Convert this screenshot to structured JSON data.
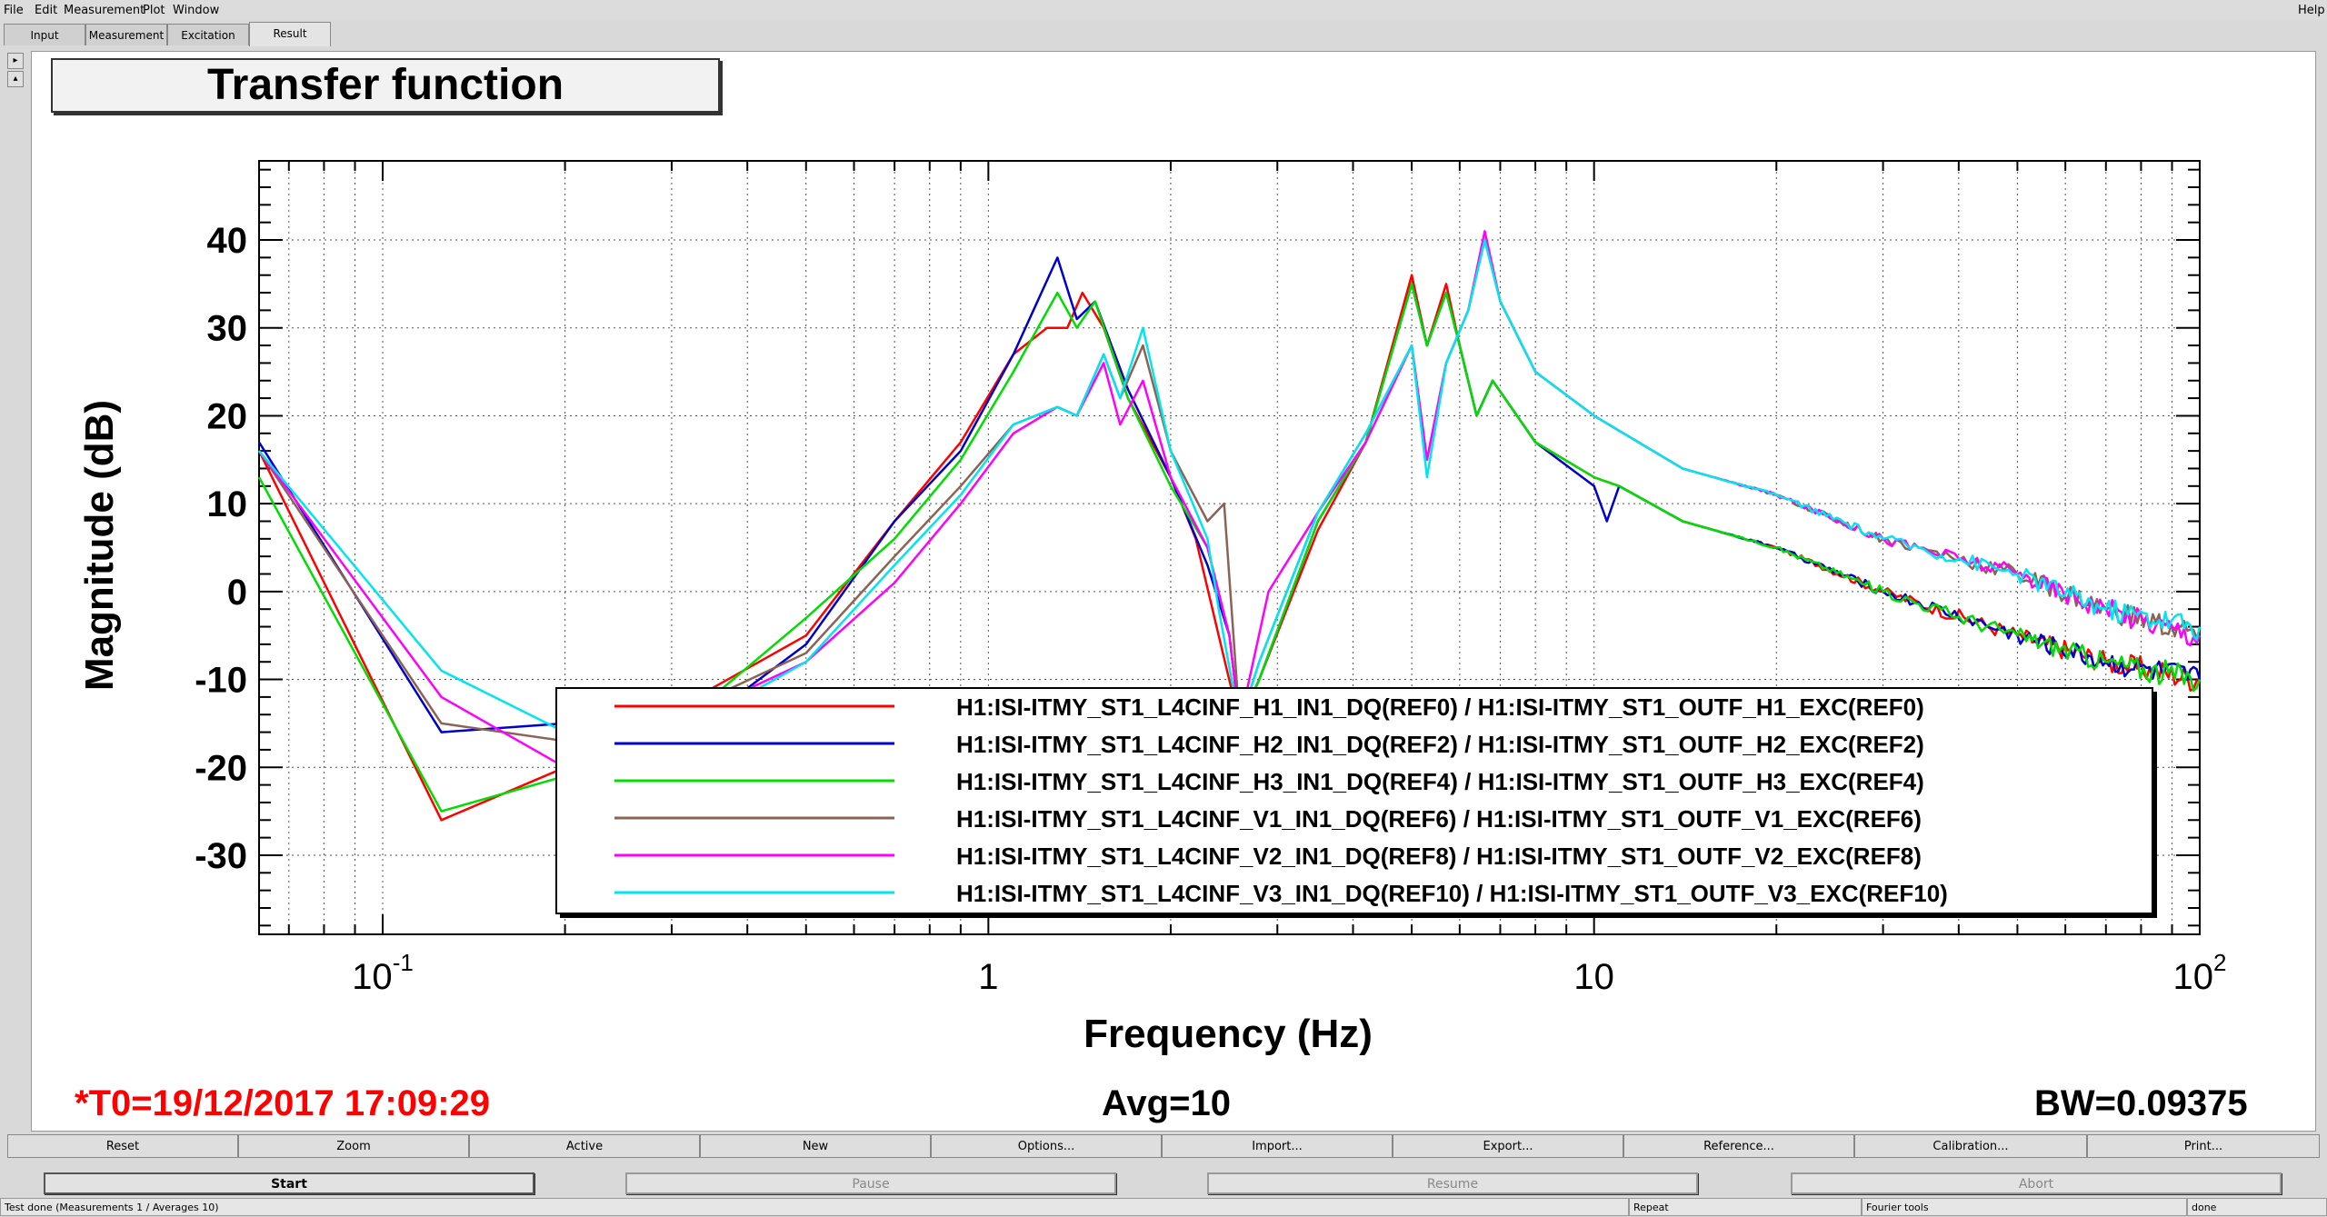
{
  "menu": [
    "File",
    "Edit",
    "Measurement",
    "Plot",
    "Window"
  ],
  "help": "Help",
  "tabs": [
    "Input",
    "Measurement",
    "Excitation",
    "Result"
  ],
  "active_tab": "Result",
  "plot_title": "Transfer function",
  "footer": {
    "t0": "*T0=19/12/2017 17:09:29",
    "avg": "Avg=10",
    "bw": "BW=0.09375"
  },
  "toolbar": [
    "Reset",
    "Zoom",
    "Active",
    "New",
    "Options...",
    "Import...",
    "Export...",
    "Reference...",
    "Calibration...",
    "Print..."
  ],
  "controls": {
    "start": "Start",
    "pause": "Pause",
    "resume": "Resume",
    "abort": "Abort"
  },
  "status": {
    "message": "Test done (Measurements 1 / Averages 10)",
    "repeat": "Repeat",
    "tools": "Fourier tools",
    "state": "done"
  },
  "colors": {
    "accent_red": "#ff0000",
    "REF0": "#ff0000",
    "REF2": "#0000cc",
    "REF4": "#00dd00",
    "REF6": "#8b6355",
    "REF8": "#ff00ff",
    "REF10": "#00e5ee"
  },
  "chart_data": {
    "type": "line",
    "title": "Transfer function",
    "xlabel": "Frequency (Hz)",
    "ylabel": "Magnitude (dB)",
    "xscale": "log",
    "xlim": [
      0.0625,
      100
    ],
    "ylim": [
      -39,
      49
    ],
    "grid": true,
    "x_tick_labels": [
      {
        "base": "10",
        "exp": "-1"
      },
      {
        "base": "1",
        "exp": ""
      },
      {
        "base": "10",
        "exp": ""
      },
      {
        "base": "10",
        "exp": "2"
      }
    ],
    "y_ticks": [
      40,
      30,
      20,
      10,
      0,
      -10,
      -20,
      -30
    ],
    "legend_position": "bottom-right",
    "series": [
      {
        "name": "H1:ISI-ITMY_ST1_L4CINF_H1_IN1_DQ(REF0) / H1:ISI-ITMY_ST1_OUTF_H1_EXC(REF0)",
        "color": "#ff0000",
        "points": [
          [
            0.0625,
            16
          ],
          [
            0.125,
            -26
          ],
          [
            0.2,
            -20
          ],
          [
            0.35,
            -11
          ],
          [
            0.5,
            -5
          ],
          [
            0.7,
            8
          ],
          [
            0.9,
            17
          ],
          [
            1.1,
            27
          ],
          [
            1.25,
            30
          ],
          [
            1.35,
            30
          ],
          [
            1.43,
            34
          ],
          [
            1.55,
            30
          ],
          [
            1.7,
            22
          ],
          [
            2.0,
            13
          ],
          [
            2.2,
            6
          ],
          [
            2.4,
            -5
          ],
          [
            2.6,
            -15
          ],
          [
            2.8,
            -10
          ],
          [
            3.5,
            7
          ],
          [
            4.2,
            17
          ],
          [
            5.0,
            36
          ],
          [
            5.3,
            28
          ],
          [
            5.7,
            35
          ],
          [
            6.0,
            28
          ],
          [
            6.4,
            20
          ],
          [
            6.8,
            24
          ],
          [
            8.0,
            17
          ],
          [
            10,
            13
          ],
          [
            11,
            12
          ],
          [
            14,
            8
          ],
          [
            20,
            5
          ],
          [
            30,
            0
          ],
          [
            50,
            -5
          ],
          [
            70,
            -8
          ],
          [
            100,
            -10
          ]
        ]
      },
      {
        "name": "H1:ISI-ITMY_ST1_L4CINF_H2_IN1_DQ(REF2) / H1:ISI-ITMY_ST1_OUTF_H2_EXC(REF2)",
        "color": "#0000cc",
        "points": [
          [
            0.0625,
            17
          ],
          [
            0.125,
            -16
          ],
          [
            0.2,
            -15
          ],
          [
            0.35,
            -14
          ],
          [
            0.5,
            -6
          ],
          [
            0.7,
            8
          ],
          [
            0.9,
            16
          ],
          [
            1.1,
            27
          ],
          [
            1.3,
            38
          ],
          [
            1.4,
            31
          ],
          [
            1.5,
            33
          ],
          [
            1.7,
            23
          ],
          [
            2.0,
            13
          ],
          [
            2.3,
            3
          ],
          [
            2.5,
            -5
          ],
          [
            2.6,
            -15
          ],
          [
            2.8,
            -10
          ],
          [
            3.5,
            8
          ],
          [
            4.2,
            17
          ],
          [
            5.0,
            35
          ],
          [
            5.3,
            28
          ],
          [
            5.7,
            34
          ],
          [
            6.0,
            28
          ],
          [
            6.4,
            20
          ],
          [
            6.8,
            24
          ],
          [
            8.0,
            17
          ],
          [
            10,
            12
          ],
          [
            10.5,
            8
          ],
          [
            11,
            12
          ],
          [
            14,
            8
          ],
          [
            20,
            5
          ],
          [
            30,
            0
          ],
          [
            50,
            -5
          ],
          [
            70,
            -8
          ],
          [
            100,
            -10
          ]
        ]
      },
      {
        "name": "H1:ISI-ITMY_ST1_L4CINF_H3_IN1_DQ(REF4) / H1:ISI-ITMY_ST1_OUTF_H3_EXC(REF4)",
        "color": "#00dd00",
        "points": [
          [
            0.0625,
            13
          ],
          [
            0.125,
            -25
          ],
          [
            0.2,
            -21
          ],
          [
            0.35,
            -12
          ],
          [
            0.5,
            -3
          ],
          [
            0.7,
            6
          ],
          [
            0.9,
            15
          ],
          [
            1.1,
            25
          ],
          [
            1.3,
            34
          ],
          [
            1.4,
            30
          ],
          [
            1.5,
            33
          ],
          [
            1.7,
            22
          ],
          [
            2.0,
            12
          ],
          [
            2.3,
            5
          ],
          [
            2.5,
            -5
          ],
          [
            2.6,
            -15
          ],
          [
            2.8,
            -10
          ],
          [
            3.5,
            8
          ],
          [
            4.2,
            17
          ],
          [
            5.0,
            35
          ],
          [
            5.3,
            28
          ],
          [
            5.7,
            34
          ],
          [
            6.0,
            28
          ],
          [
            6.4,
            20
          ],
          [
            6.8,
            24
          ],
          [
            8.0,
            17
          ],
          [
            10,
            13
          ],
          [
            11,
            12
          ],
          [
            14,
            8
          ],
          [
            20,
            5
          ],
          [
            30,
            0
          ],
          [
            50,
            -5
          ],
          [
            70,
            -8
          ],
          [
            100,
            -10
          ]
        ]
      },
      {
        "name": "H1:ISI-ITMY_ST1_L4CINF_V1_IN1_DQ(REF6) / H1:ISI-ITMY_ST1_OUTF_V1_EXC(REF6)",
        "color": "#8b6355",
        "points": [
          [
            0.0625,
            16
          ],
          [
            0.125,
            -15
          ],
          [
            0.2,
            -17
          ],
          [
            0.35,
            -12
          ],
          [
            0.5,
            -7
          ],
          [
            0.7,
            4
          ],
          [
            0.9,
            12
          ],
          [
            1.1,
            19
          ],
          [
            1.3,
            21
          ],
          [
            1.4,
            20
          ],
          [
            1.55,
            27
          ],
          [
            1.65,
            22
          ],
          [
            1.8,
            28
          ],
          [
            2.0,
            16
          ],
          [
            2.3,
            8
          ],
          [
            2.45,
            10
          ],
          [
            2.6,
            -15
          ],
          [
            2.8,
            -8
          ],
          [
            3.5,
            9
          ],
          [
            4.2,
            18
          ],
          [
            5.0,
            28
          ],
          [
            5.3,
            15
          ],
          [
            5.7,
            26
          ],
          [
            6.2,
            32
          ],
          [
            6.6,
            40
          ],
          [
            7.0,
            33
          ],
          [
            8.0,
            25
          ],
          [
            10,
            20
          ],
          [
            14,
            14
          ],
          [
            20,
            11
          ],
          [
            30,
            6
          ],
          [
            50,
            2
          ],
          [
            70,
            -2
          ],
          [
            100,
            -5
          ]
        ]
      },
      {
        "name": "H1:ISI-ITMY_ST1_L4CINF_V2_IN1_DQ(REF8) / H1:ISI-ITMY_ST1_OUTF_V2_EXC(REF8)",
        "color": "#ff00ff",
        "points": [
          [
            0.0625,
            16
          ],
          [
            0.125,
            -12
          ],
          [
            0.2,
            -20
          ],
          [
            0.35,
            -13
          ],
          [
            0.5,
            -8
          ],
          [
            0.7,
            1
          ],
          [
            0.9,
            10
          ],
          [
            1.1,
            18
          ],
          [
            1.3,
            21
          ],
          [
            1.4,
            20
          ],
          [
            1.55,
            26
          ],
          [
            1.65,
            19
          ],
          [
            1.8,
            24
          ],
          [
            2.0,
            13
          ],
          [
            2.3,
            5
          ],
          [
            2.5,
            -5
          ],
          [
            2.6,
            -15
          ],
          [
            2.9,
            0
          ],
          [
            3.5,
            9
          ],
          [
            4.2,
            17
          ],
          [
            5.0,
            28
          ],
          [
            5.3,
            15
          ],
          [
            5.7,
            26
          ],
          [
            6.2,
            32
          ],
          [
            6.6,
            41
          ],
          [
            7.0,
            33
          ],
          [
            8.0,
            25
          ],
          [
            10,
            20
          ],
          [
            14,
            14
          ],
          [
            20,
            11
          ],
          [
            30,
            6
          ],
          [
            50,
            2
          ],
          [
            70,
            -2
          ],
          [
            100,
            -5
          ]
        ]
      },
      {
        "name": "H1:ISI-ITMY_ST1_L4CINF_V3_IN1_DQ(REF10) / H1:ISI-ITMY_ST1_OUTF_V3_EXC(REF10)",
        "color": "#00e5ee",
        "points": [
          [
            0.0625,
            16
          ],
          [
            0.125,
            -9
          ],
          [
            0.2,
            -16
          ],
          [
            0.35,
            -14
          ],
          [
            0.5,
            -8
          ],
          [
            0.7,
            3
          ],
          [
            0.9,
            11
          ],
          [
            1.1,
            19
          ],
          [
            1.3,
            21
          ],
          [
            1.4,
            20
          ],
          [
            1.55,
            27
          ],
          [
            1.65,
            22
          ],
          [
            1.8,
            30
          ],
          [
            2.0,
            16
          ],
          [
            2.3,
            6
          ],
          [
            2.4,
            -2
          ],
          [
            2.6,
            -15
          ],
          [
            2.8,
            -8
          ],
          [
            3.5,
            9
          ],
          [
            4.2,
            18
          ],
          [
            5.0,
            28
          ],
          [
            5.3,
            13
          ],
          [
            5.7,
            26
          ],
          [
            6.2,
            32
          ],
          [
            6.6,
            40
          ],
          [
            7.0,
            33
          ],
          [
            8.0,
            25
          ],
          [
            10,
            20
          ],
          [
            14,
            14
          ],
          [
            20,
            11
          ],
          [
            30,
            6
          ],
          [
            50,
            2
          ],
          [
            70,
            -2
          ],
          [
            100,
            -4
          ]
        ]
      }
    ]
  }
}
